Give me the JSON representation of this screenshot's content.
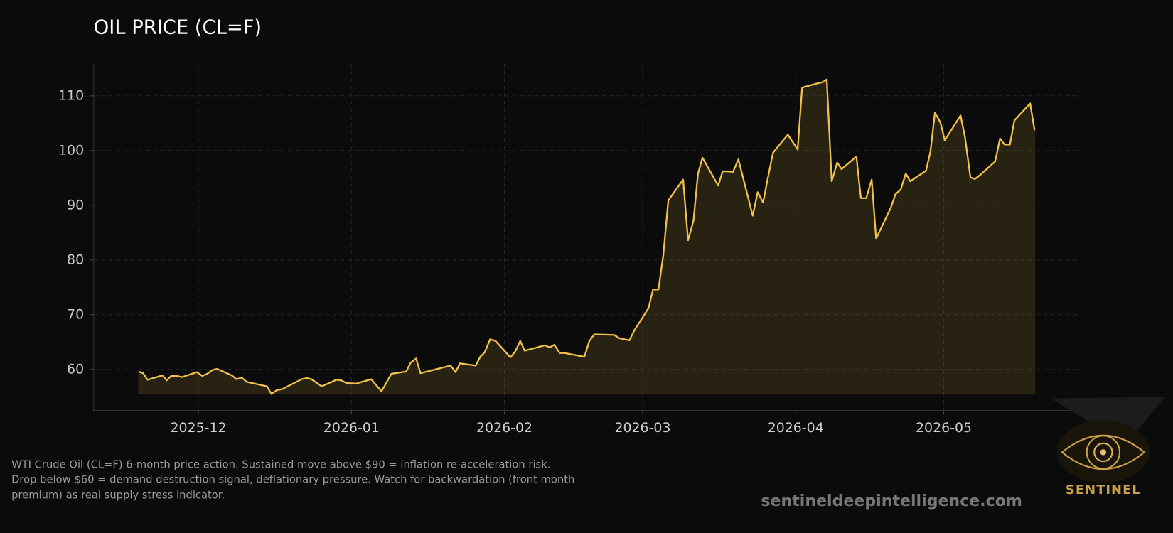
{
  "chart_data": {
    "type": "area",
    "title": "OIL PRICE (CL=F)",
    "note": [
      "WTI Crude Oil (CL=F) 6-month price action. Sustained move above $90 = inflation re-acceleration risk.",
      "Drop below $60 = demand destruction signal, deflationary pressure. Watch for backwardation (front month",
      "premium) as real supply stress indicator."
    ],
    "watermark": "sentineldeepintelligence.com",
    "logo_text": "SENTINEL",
    "x": [
      -12.1,
      -11.2,
      -10.3,
      -7.3,
      -6.4,
      -5.5,
      -4.4,
      -3.3,
      -0.3,
      0.8,
      1.8,
      2.9,
      3.8,
      6.8,
      7.7,
      8.8,
      9.8,
      13.9,
      14.8,
      15.9,
      17.0,
      20.9,
      22.0,
      22.9,
      25.0,
      28.0,
      28.9,
      30.0,
      32.0,
      35.0,
      37.1,
      39.1,
      42.1,
      43.0,
      44.1,
      45.0,
      51.1,
      52.1,
      53.0,
      56.2,
      57.1,
      58.0,
      59.1,
      60.2,
      63.2,
      64.2,
      65.2,
      66.1,
      70.2,
      71.2,
      72.1,
      73.2,
      74.2,
      78.2,
      79.2,
      80.2,
      84.2,
      85.3,
      87.3,
      88.3,
      91.2,
      92.1,
      93.2,
      94.2,
      95.2,
      98.2,
      99.2,
      100.3,
      101.2,
      102.1,
      105.3,
      106.2,
      107.3,
      108.3,
      109.4,
      112.3,
      113.3,
      114.4,
      115.3,
      116.4,
      119.4,
      121.4,
      122.3,
      125.5,
      126.5,
      127.3,
      128.3,
      129.4,
      130.3,
      133.3,
      134.2,
      135.3,
      136.4,
      137.3,
      140.3,
      141.2,
      142.3,
      143.3,
      144.2,
      147.4,
      148.3,
      149.2,
      150.3,
      151.2,
      154.4,
      155.3,
      156.4,
      157.3,
      158.3,
      161.4,
      162.4,
      163.3,
      164.4,
      165.3,
      168.5,
      169.4
    ],
    "series": [
      {
        "color": "#f0c04a",
        "values": [
          59.6,
          59.3,
          58.1,
          58.9,
          58.0,
          58.8,
          58.8,
          58.6,
          59.5,
          58.8,
          59.2,
          59.9,
          60.1,
          58.9,
          58.2,
          58.5,
          57.7,
          56.9,
          55.5,
          56.2,
          56.4,
          58.2,
          58.4,
          58.2,
          56.9,
          58.1,
          58.0,
          57.5,
          57.4,
          58.2,
          56.0,
          59.2,
          59.6,
          61.2,
          62.0,
          59.3,
          60.7,
          59.5,
          61.1,
          60.7,
          62.3,
          63.1,
          65.5,
          65.2,
          62.2,
          63.3,
          65.2,
          63.4,
          64.4,
          64.0,
          64.5,
          63.0,
          63.0,
          62.3,
          65.2,
          66.4,
          66.3,
          65.7,
          65.3,
          67.1,
          71.2,
          74.6,
          74.6,
          81.0,
          90.9,
          94.7,
          83.6,
          87.2,
          95.7,
          98.7,
          93.6,
          96.2,
          96.2,
          96.1,
          98.4,
          88.1,
          92.4,
          90.5,
          94.7,
          99.6,
          102.9,
          100.2,
          111.5,
          112.3,
          112.5,
          113.0,
          94.4,
          97.8,
          96.6,
          98.9,
          91.3,
          91.3,
          94.7,
          83.9,
          89.6,
          92.0,
          92.9,
          95.8,
          94.4,
          96.3,
          99.8,
          106.9,
          105.2,
          101.9,
          106.4,
          102.5,
          95.1,
          94.8,
          95.5,
          98.0,
          102.2,
          101.1,
          101.1,
          105.5,
          108.6,
          103.7
        ]
      }
    ],
    "xlim": [
      -21.2,
      178
    ],
    "xticks": [
      {
        "value": 0,
        "label": "2025-12"
      },
      {
        "value": 31,
        "label": "2026-01"
      },
      {
        "value": 62,
        "label": "2026-02"
      },
      {
        "value": 90,
        "label": "2026-03"
      },
      {
        "value": 121,
        "label": "2026-04"
      },
      {
        "value": 151,
        "label": "2026-05"
      }
    ],
    "ylim": [
      52.5,
      115.9
    ],
    "yticks": [
      60,
      70,
      80,
      90,
      100,
      110
    ],
    "grid": true
  }
}
